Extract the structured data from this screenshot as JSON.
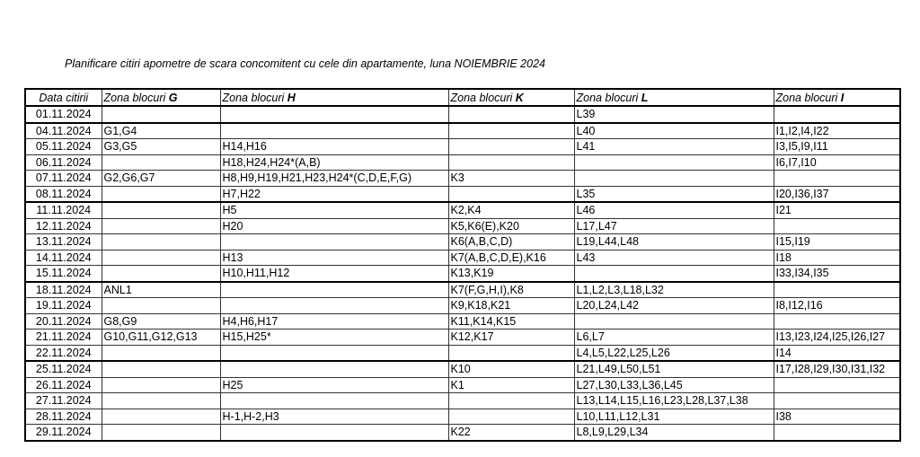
{
  "document": {
    "title": "Planificare citiri apometre de scara concomitent cu cele din apartamente, luna NOIEMBRIE 2024"
  },
  "table": {
    "headers": [
      {
        "text": "Data citirii",
        "bold": ""
      },
      {
        "text": "Zona blocuri ",
        "bold": "G"
      },
      {
        "text": "Zona blocuri ",
        "bold": "H"
      },
      {
        "text": "Zona blocuri ",
        "bold": "K"
      },
      {
        "text": "Zona blocuri ",
        "bold": "L"
      },
      {
        "text": "Zona blocuri ",
        "bold": "I"
      }
    ],
    "rows": [
      {
        "date": "01.11.2024",
        "G": "",
        "H": "",
        "K": "",
        "L": "L39",
        "I": "",
        "week_end": true
      },
      {
        "date": "04.11.2024",
        "G": "G1,G4",
        "H": "",
        "K": "",
        "L": "L40",
        "I": "I1,I2,I4,I22"
      },
      {
        "date": "05.11.2024",
        "G": "G3,G5",
        "H": "H14,H16",
        "K": "",
        "L": "L41",
        "I": "I3,I5,I9,I11"
      },
      {
        "date": "06.11.2024",
        "G": "",
        "H": "H18,H24,H24*(A,B)",
        "K": "",
        "L": "",
        "I": "I6,I7,I10"
      },
      {
        "date": "07.11.2024",
        "G": "G2,G6,G7",
        "H": "H8,H9,H19,H21,H23,H24*(C,D,E,F,G)",
        "K": "K3",
        "L": "",
        "I": ""
      },
      {
        "date": "08.11.2024",
        "G": "",
        "H": "H7,H22",
        "K": "",
        "L": "L35",
        "I": "I20,I36,I37",
        "week_end": true
      },
      {
        "date": "11.11.2024",
        "G": "",
        "H": "H5",
        "K": "K2,K4",
        "L": "L46",
        "I": "I21"
      },
      {
        "date": "12.11.2024",
        "G": "",
        "H": "H20",
        "K": "K5,K6(E),K20",
        "L": "L17,L47",
        "I": ""
      },
      {
        "date": "13.11.2024",
        "G": "",
        "H": "",
        "K": "K6(A,B,C,D)",
        "L": "L19,L44,L48",
        "I": "I15,I19"
      },
      {
        "date": "14.11.2024",
        "G": "",
        "H": "H13",
        "K": "K7(A,B,C,D,E),K16",
        "L": "L43",
        "I": "I18"
      },
      {
        "date": "15.11.2024",
        "G": "",
        "H": "H10,H11,H12",
        "K": "K13,K19",
        "L": "",
        "I": "I33,I34,I35",
        "week_end": true
      },
      {
        "date": "18.11.2024",
        "G": "ANL1",
        "H": "",
        "K": "K7(F,G,H,I),K8",
        "L": "L1,L2,L3,L18,L32",
        "I": ""
      },
      {
        "date": "19.11.2024",
        "G": "",
        "H": "",
        "K": "K9,K18,K21",
        "L": "L20,L24,L42",
        "I": "I8,I12,I16"
      },
      {
        "date": "20.11.2024",
        "G": "G8,G9",
        "H": "H4,H6,H17",
        "K": "K11,K14,K15",
        "L": "",
        "I": ""
      },
      {
        "date": "21.11.2024",
        "G": "G10,G11,G12,G13",
        "H": "H15,H25*",
        "K": "K12,K17",
        "L": "L6,L7",
        "I": "I13,I23,I24,I25,I26,I27"
      },
      {
        "date": "22.11.2024",
        "G": "",
        "H": "",
        "K": "",
        "L": "L4,L5,L22,L25,L26",
        "I": "I14",
        "week_end": true
      },
      {
        "date": "25.11.2024",
        "G": "",
        "H": "",
        "K": "K10",
        "L": "L21,L49,L50,L51",
        "I": "I17,I28,I29,I30,I31,I32"
      },
      {
        "date": "26.11.2024",
        "G": "",
        "H": "H25",
        "K": "K1",
        "L": "L27,L30,L33,L36,L45",
        "I": ""
      },
      {
        "date": "27.11.2024",
        "G": "",
        "H": "",
        "K": "",
        "L": "L13,L14,L15,L16,L23,L28,L37,L38",
        "I": ""
      },
      {
        "date": "28.11.2024",
        "G": "",
        "H": "H-1,H-2,H3",
        "K": "",
        "L": "L10,L11,L12,L31",
        "I": "I38"
      },
      {
        "date": "29.11.2024",
        "G": "",
        "H": "",
        "K": "K22",
        "L": "L8,L9,L29,L34",
        "I": ""
      }
    ]
  }
}
